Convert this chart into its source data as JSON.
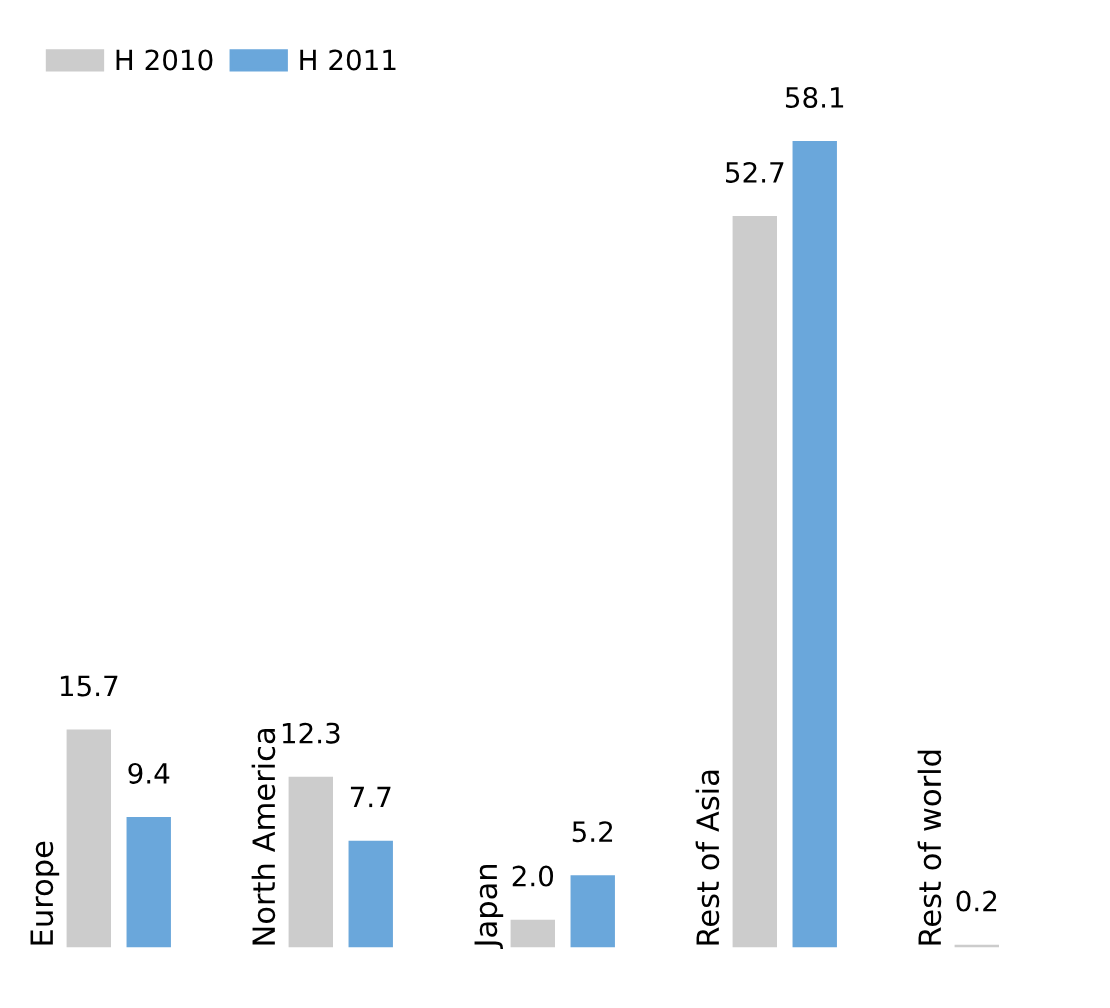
{
  "chart_data": {
    "type": "bar",
    "categories": [
      "Europe",
      "North America",
      "Japan",
      "Rest of Asia",
      "Rest of world"
    ],
    "series": [
      {
        "name": "H 2010",
        "color": "#cccccc",
        "values": [
          15.7,
          12.3,
          2.0,
          52.7,
          0.2
        ],
        "value_labels": [
          "15.7",
          "12.3",
          "2.0",
          "52.7",
          "0.2"
        ]
      },
      {
        "name": "H 2011",
        "color": "#6aa7db",
        "values": [
          9.4,
          7.7,
          5.2,
          58.1,
          null
        ],
        "value_labels": [
          "9.4",
          "7.7",
          "5.2",
          "58.1",
          null
        ]
      }
    ],
    "legend": "top left"
  }
}
